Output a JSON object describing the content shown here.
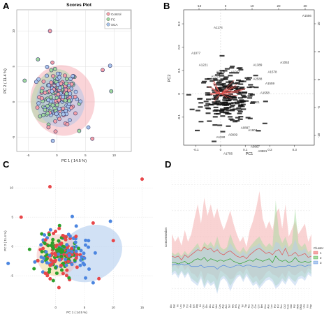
{
  "panels": {
    "A": {
      "letter": "A"
    },
    "B": {
      "letter": "B"
    },
    "C": {
      "letter": "C"
    },
    "D": {
      "letter": "D"
    }
  },
  "chart_data": [
    {
      "panel": "A",
      "type": "scatter",
      "title": "Scores Plot",
      "xlabel": "PC 1 ( 14.5 %)",
      "ylabel": "PC 2 ( 11.4 %)",
      "xlim": [
        -7,
        13
      ],
      "ylim": [
        -7,
        13
      ],
      "xticks": [
        -5,
        0,
        5,
        10
      ],
      "yticks": [
        -5,
        0,
        5,
        10
      ],
      "grid": true,
      "legend_position": "top-right",
      "series": [
        {
          "name": "Control",
          "color": "#f4a0a8"
        },
        {
          "name": "FC",
          "color": "#9fd89f"
        },
        {
          "name": "SGA",
          "color": "#a6c3ec"
        }
      ],
      "outliers": [
        [
          -1.2,
          10.0
        ],
        [
          -3.3,
          6.0
        ],
        [
          9.3,
          5.1
        ],
        [
          8.0,
          4.5
        ],
        [
          9.5,
          1.5
        ],
        [
          5.5,
          -3.6
        ],
        [
          6.2,
          -5.2
        ],
        [
          3.9,
          -4.1
        ],
        [
          -0.7,
          -5.5
        ],
        [
          2.6,
          2.5
        ]
      ]
    },
    {
      "panel": "B",
      "type": "scatter",
      "xlabel": "PC1",
      "ylabel": "PC2",
      "xlim": [
        -0.15,
        0.38
      ],
      "ylim": [
        -0.22,
        0.36
      ],
      "xticks": [
        -0.1,
        0.0,
        0.1,
        0.2,
        0.3
      ],
      "yticks": [
        -0.1,
        0.0,
        0.1,
        0.2,
        0.3
      ],
      "top_ticks": [
        -10,
        0,
        10,
        20,
        30
      ],
      "right_ticks": [
        -10,
        -5,
        0,
        5,
        10
      ],
      "labeled_points": [
        {
          "label": "A1556",
          "x": 0.35,
          "y": 0.33
        },
        {
          "label": "A1174",
          "x": -0.01,
          "y": 0.28
        },
        {
          "label": "A1077",
          "x": -0.1,
          "y": 0.17
        },
        {
          "label": "A1053",
          "x": 0.26,
          "y": 0.13
        },
        {
          "label": "A1389",
          "x": 0.15,
          "y": 0.12
        },
        {
          "label": "A1221",
          "x": -0.07,
          "y": 0.12
        },
        {
          "label": "A1578",
          "x": 0.21,
          "y": 0.09
        },
        {
          "label": "A1004",
          "x": 0.0,
          "y": 0.09
        },
        {
          "label": "A1033",
          "x": 0.06,
          "y": 0.09
        },
        {
          "label": "A1223",
          "x": -0.02,
          "y": 0.07
        },
        {
          "label": "A2588",
          "x": 0.15,
          "y": 0.06
        },
        {
          "label": "A1559",
          "x": 0.2,
          "y": 0.04
        },
        {
          "label": "A1558",
          "x": 0.18,
          "y": 0.0
        },
        {
          "label": "A1601",
          "x": 0.14,
          "y": -0.04
        },
        {
          "label": "A0897",
          "x": 0.1,
          "y": -0.15
        },
        {
          "label": "A1604",
          "x": 0.13,
          "y": -0.16
        },
        {
          "label": "A0939",
          "x": 0.05,
          "y": -0.18
        },
        {
          "label": "A1190",
          "x": 0.0,
          "y": -0.19
        },
        {
          "label": "A0867",
          "x": 0.14,
          "y": -0.23
        },
        {
          "label": "A0881",
          "x": 0.17,
          "y": -0.25
        },
        {
          "label": "A1756",
          "x": 0.03,
          "y": -0.26
        }
      ]
    },
    {
      "panel": "C",
      "type": "scatter",
      "xlabel": "PC 1 ( 14.5 %)",
      "ylabel": "PC 2 ( 11.4 %)",
      "xlim": [
        -7,
        17
      ],
      "ylim": [
        -10,
        13
      ],
      "xticks": [
        0,
        5,
        10,
        15
      ],
      "yticks": [
        -5,
        0,
        5,
        10
      ],
      "series": [
        {
          "name": "Control",
          "color": "#e8474a"
        },
        {
          "name": "FC",
          "color": "#2ca02c"
        },
        {
          "name": "SGA",
          "color": "#4c86e0"
        }
      ],
      "outliers": [
        [
          -1.0,
          10.2
        ],
        [
          15.0,
          11.5
        ],
        [
          9.5,
          4.3
        ],
        [
          10.0,
          1.0
        ],
        [
          7.5,
          -5.5
        ],
        [
          6.5,
          -6.2
        ],
        [
          -6.0,
          5.0
        ],
        [
          6.5,
          4.0
        ]
      ]
    },
    {
      "panel": "D",
      "type": "area",
      "ylabel": "Concentration",
      "legend_title": "Cluster",
      "legend_position": "right",
      "categories": [
        "Glc",
        "Gal",
        "Ile",
        "Leu",
        "Val",
        "Thr",
        "Ala",
        "Lys",
        "Arg",
        "Cit",
        "Orn",
        "Gln",
        "Glu",
        "Pro",
        "Met",
        "Cys",
        "Asp",
        "Asn",
        "Ser",
        "Gly",
        "His",
        "Phe",
        "Tyr",
        "Trp",
        "Tau",
        "Car",
        "Cre",
        "Crn",
        "Bet",
        "Cho",
        "Ace",
        "Lac",
        "Pyr",
        "For",
        "Suc",
        "Cit2",
        "Fum",
        "Mal",
        "Hip",
        "TMA",
        "DMA",
        "Ura",
        "Ino",
        "Hyp"
      ],
      "ylim": [
        -3,
        7
      ],
      "series": [
        {
          "name": "1",
          "color": "#f4a7a7",
          "line": "#e05555",
          "upper": [
            2.2,
            1.6,
            2.0,
            1.3,
            2.5,
            1.6,
            2.2,
            3.4,
            4.5,
            3.0,
            5.0,
            3.6,
            4.5,
            3.4,
            4.2,
            3.2,
            2.5,
            3.2,
            4.0,
            3.0,
            2.2,
            1.6,
            2.0,
            1.2,
            2.5,
            3.2,
            4.2,
            5.5,
            3.4,
            2.6,
            3.2,
            2.5,
            3.8,
            4.2,
            2.6,
            4.5,
            2.0,
            2.6,
            3.2,
            2.2,
            2.6,
            3.0,
            1.6,
            2.2
          ],
          "lower": [
            -0.4,
            -0.2,
            -0.5,
            -0.1,
            -0.6,
            -0.3,
            -0.8,
            -0.9,
            -1.2,
            -0.6,
            -1.4,
            -0.8,
            -0.9,
            -1.0,
            -1.4,
            -0.6,
            -0.8,
            -1.0,
            -1.3,
            -1.2,
            -0.8,
            -0.6,
            -0.9,
            -0.4,
            -0.9,
            -1.2,
            -1.0,
            -1.4,
            -1.2,
            -0.8,
            -0.6,
            -0.9,
            -1.0,
            -1.2,
            -0.8,
            -1.2,
            -0.6,
            -0.9,
            -1.0,
            -0.8,
            -0.6,
            -0.9,
            -0.4,
            -0.6
          ],
          "mean": [
            0.5,
            0.4,
            0.5,
            0.2,
            0.6,
            0.4,
            0.6,
            0.8,
            1.0,
            0.9,
            1.2,
            1.0,
            1.1,
            0.8,
            1.0,
            0.7,
            0.6,
            0.8,
            0.9,
            0.7,
            0.5,
            0.4,
            0.5,
            0.3,
            0.6,
            0.8,
            1.0,
            1.1,
            0.9,
            0.7,
            0.8,
            0.6,
            0.9,
            1.0,
            0.6,
            1.1,
            0.5,
            0.6,
            0.8,
            0.5,
            0.6,
            0.7,
            0.4,
            0.5
          ]
        },
        {
          "name": "2",
          "color": "#a6dba0",
          "line": "#2ca02c",
          "upper": [
            0.8,
            0.6,
            0.8,
            0.5,
            0.9,
            0.6,
            0.9,
            1.2,
            1.5,
            0.9,
            1.6,
            1.3,
            1.6,
            1.2,
            2.0,
            1.2,
            1.0,
            1.2,
            2.2,
            1.5,
            1.0,
            0.8,
            1.2,
            0.8,
            1.2,
            1.5,
            1.8,
            2.0,
            1.5,
            1.2,
            1.5,
            1.2,
            4.8,
            2.2,
            1.5,
            2.0,
            1.2,
            1.5,
            4.2,
            1.5,
            1.2,
            1.5,
            0.8,
            1.0
          ],
          "lower": [
            -0.8,
            -0.6,
            -1.0,
            -0.6,
            -1.0,
            -0.7,
            -1.2,
            -1.4,
            -1.6,
            -1.0,
            -1.8,
            -1.3,
            -1.6,
            -1.4,
            -2.2,
            -1.2,
            -1.0,
            -1.3,
            -1.8,
            -1.4,
            -1.0,
            -0.9,
            -1.3,
            -0.8,
            -1.2,
            -1.6,
            -1.4,
            -1.8,
            -1.5,
            -1.2,
            -1.1,
            -1.3,
            -1.8,
            -1.6,
            -1.2,
            -1.5,
            -1.0,
            -1.3,
            -1.5,
            -1.1,
            -1.0,
            -1.2,
            -0.7,
            -0.9
          ],
          "mean": [
            0.0,
            0.0,
            -0.1,
            0.0,
            0.1,
            -0.1,
            0.0,
            0.2,
            0.3,
            0.2,
            0.4,
            0.1,
            0.3,
            0.2,
            0.1,
            0.2,
            0.1,
            0.2,
            0.3,
            0.1,
            0.0,
            -0.1,
            0.0,
            0.1,
            0.2,
            0.1,
            0.3,
            0.2,
            0.1,
            0.2,
            0.3,
            0.0,
            0.5,
            0.2,
            0.1,
            0.2,
            0.0,
            0.1,
            0.4,
            0.1,
            0.0,
            0.1,
            0.0,
            0.1
          ]
        },
        {
          "name": "3",
          "color": "#b3cdee",
          "line": "#4c86e0",
          "upper": [
            0.6,
            0.5,
            0.6,
            0.4,
            0.7,
            0.5,
            0.8,
            1.0,
            1.2,
            0.8,
            1.2,
            1.0,
            1.3,
            1.0,
            1.4,
            0.9,
            0.8,
            1.0,
            1.5,
            1.1,
            0.8,
            0.6,
            0.9,
            0.6,
            1.0,
            1.2,
            1.3,
            1.5,
            1.1,
            0.9,
            1.0,
            0.9,
            1.6,
            1.5,
            1.0,
            1.4,
            0.8,
            1.0,
            1.8,
            1.0,
            0.9,
            1.1,
            0.6,
            0.8
          ],
          "lower": [
            -1.0,
            -0.8,
            -1.2,
            -0.7,
            -1.2,
            -0.8,
            -1.4,
            -1.6,
            -1.8,
            -1.2,
            -2.0,
            -1.5,
            -1.8,
            -1.6,
            -2.4,
            -1.4,
            -1.2,
            -1.5,
            -2.2,
            -1.6,
            -1.2,
            -1.0,
            -1.5,
            -1.0,
            -1.4,
            -1.8,
            -1.6,
            -2.0,
            -1.7,
            -1.4,
            -1.3,
            -1.5,
            -2.0,
            -1.8,
            -1.4,
            -1.7,
            -1.2,
            -1.5,
            -1.8,
            -1.3,
            -1.2,
            -1.4,
            -0.9,
            -1.1
          ],
          "mean": [
            -0.2,
            -0.1,
            -0.2,
            -0.1,
            -0.2,
            -0.1,
            -0.3,
            -0.3,
            -0.3,
            -0.2,
            -0.4,
            -0.3,
            -0.3,
            -0.3,
            -0.5,
            -0.3,
            -0.2,
            -0.3,
            -0.4,
            -0.3,
            -0.2,
            -0.2,
            -0.3,
            -0.2,
            -0.2,
            -0.3,
            -0.3,
            -0.4,
            -0.3,
            -0.3,
            -0.2,
            -0.3,
            -0.4,
            -0.3,
            -0.3,
            -0.3,
            -0.2,
            -0.3,
            -0.3,
            -0.2,
            -0.2,
            -0.3,
            -0.2,
            -0.2
          ]
        }
      ]
    }
  ]
}
